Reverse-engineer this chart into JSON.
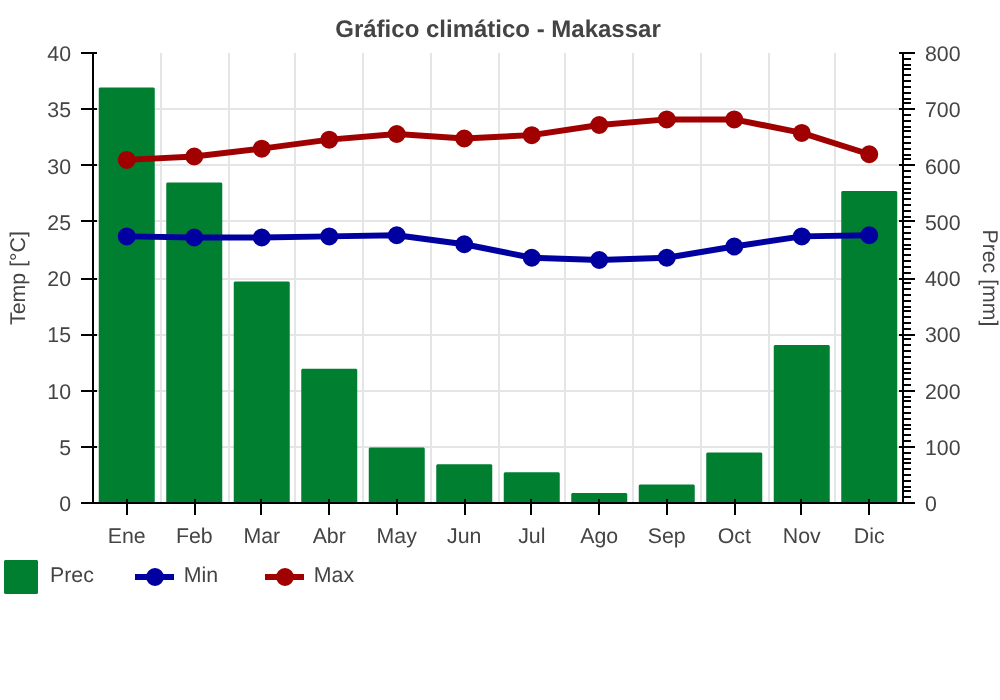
{
  "chart_data": {
    "type": "bar",
    "title": "Gráfico climático - Makassar",
    "categories": [
      "Ene",
      "Feb",
      "Mar",
      "Abr",
      "May",
      "Jun",
      "Jul",
      "Ago",
      "Sep",
      "Oct",
      "Nov",
      "Dic"
    ],
    "series": [
      {
        "name": "Prec",
        "axis": "y2",
        "color": "#007f31",
        "values": [
          737,
          568,
          392,
          237,
          97,
          67,
          53,
          16,
          31,
          88,
          279,
          553
        ]
      },
      {
        "name": "Min",
        "type": "line",
        "color": "#0000a0",
        "values": [
          23.7,
          23.6,
          23.6,
          23.7,
          23.8,
          23.0,
          21.8,
          21.6,
          21.8,
          22.8,
          23.7,
          23.8
        ]
      },
      {
        "name": "Max",
        "type": "line",
        "color": "#a00000",
        "values": [
          30.5,
          30.8,
          31.5,
          32.3,
          32.8,
          32.4,
          32.7,
          33.6,
          34.1,
          34.1,
          32.9,
          31.0
        ]
      }
    ],
    "ylabel": "Temp [°C]",
    "y2label": "Prec [mm]",
    "ylim": [
      0,
      40
    ],
    "yticks": [
      0,
      5,
      10,
      15,
      20,
      25,
      30,
      35,
      40
    ],
    "y2lim": [
      0,
      800
    ],
    "y2ticks": [
      0,
      100,
      200,
      300,
      400,
      500,
      600,
      700,
      800
    ],
    "grid": true,
    "legend": "bottom",
    "marker": "circle",
    "line_style": "solid"
  }
}
